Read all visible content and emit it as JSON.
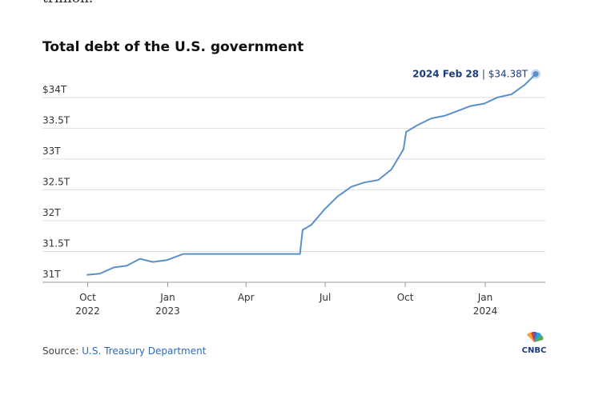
{
  "article": {
    "prev_text": "trillion."
  },
  "chart_data": {
    "type": "line",
    "title": "Total debt of the U.S. government",
    "x": [
      "2022-09-30",
      "2022-10-15",
      "2022-10-31",
      "2022-11-15",
      "2022-11-30",
      "2022-12-15",
      "2022-12-31",
      "2023-01-19",
      "2023-02-15",
      "2023-03-15",
      "2023-04-15",
      "2023-05-15",
      "2023-06-02",
      "2023-06-05",
      "2023-06-15",
      "2023-06-30",
      "2023-07-15",
      "2023-07-31",
      "2023-08-15",
      "2023-08-31",
      "2023-09-15",
      "2023-09-29",
      "2023-10-02",
      "2023-10-15",
      "2023-10-31",
      "2023-11-15",
      "2023-11-30",
      "2023-12-15",
      "2023-12-31",
      "2024-01-15",
      "2024-01-31",
      "2024-02-15",
      "2024-02-28"
    ],
    "values": [
      31.12,
      31.14,
      31.24,
      31.27,
      31.38,
      31.33,
      31.36,
      31.46,
      31.46,
      31.46,
      31.46,
      31.46,
      31.46,
      31.85,
      31.93,
      32.18,
      32.39,
      32.55,
      32.62,
      32.66,
      32.83,
      33.16,
      33.44,
      33.55,
      33.66,
      33.7,
      33.78,
      33.86,
      33.9,
      34.0,
      34.05,
      34.2,
      34.38
    ],
    "color": "#5b8fc9",
    "xlim": [
      "2022-08-10",
      "2024-03-10"
    ],
    "xticks": [
      {
        "value": "2022-10-01",
        "label": "Oct 2022"
      },
      {
        "value": "2023-01-01",
        "label": "Jan 2023"
      },
      {
        "value": "2023-04-01",
        "label": "Apr"
      },
      {
        "value": "2023-07-01",
        "label": "Jul"
      },
      {
        "value": "2023-10-01",
        "label": "Oct"
      },
      {
        "value": "2024-01-01",
        "label": "Jan 2024"
      }
    ],
    "ylim": [
      31,
      34.4
    ],
    "yticks": [
      {
        "value": 31,
        "label": "31T"
      },
      {
        "value": 31.5,
        "label": "31.5T"
      },
      {
        "value": 32,
        "label": "32T"
      },
      {
        "value": 32.5,
        "label": "32.5T"
      },
      {
        "value": 33,
        "label": "33T"
      },
      {
        "value": 33.5,
        "label": "33.5T"
      },
      {
        "value": 34,
        "label": "$34T"
      }
    ],
    "grid": true,
    "annotation": {
      "label": "2024 Feb 28",
      "text": " | $34.38T"
    },
    "source": {
      "label": "Source:",
      "link": "U.S. Treasury Department"
    },
    "logo": "CNBC"
  }
}
